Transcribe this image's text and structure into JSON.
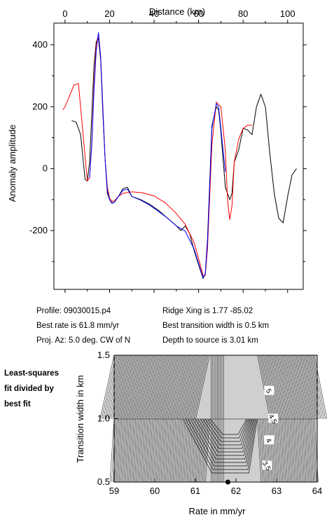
{
  "chart_data": [
    {
      "type": "line",
      "title": "Distance (km)",
      "xlabel": "Distance (km)",
      "ylabel": "Anomaly amplitude",
      "xlim": [
        -5,
        107
      ],
      "ylim": [
        -390,
        470
      ],
      "xticks": [
        "0",
        "20",
        "40",
        "60",
        "80",
        "100"
      ],
      "yticks": [
        "-200",
        "0",
        "200",
        "400"
      ],
      "series": [
        {
          "color": "#000000",
          "x": [
            3,
            5,
            7,
            9,
            10,
            11,
            12,
            13,
            14,
            15,
            16,
            17,
            18,
            19,
            20,
            21,
            22,
            24,
            26,
            28,
            30,
            34,
            38,
            42,
            46,
            50,
            52,
            54,
            56,
            58,
            60,
            62,
            63,
            64,
            66,
            68,
            69,
            70,
            72,
            74,
            75,
            76,
            78,
            80,
            82,
            84,
            86,
            88,
            90,
            92,
            94,
            96,
            98,
            100,
            102,
            104
          ],
          "y": [
            155,
            150,
            110,
            -35,
            -40,
            20,
            170,
            330,
            410,
            420,
            350,
            180,
            30,
            -80,
            -100,
            -110,
            -110,
            -90,
            -65,
            -60,
            -90,
            -100,
            -115,
            -135,
            -160,
            -185,
            -200,
            -185,
            -210,
            -265,
            -310,
            -355,
            -340,
            -230,
            140,
            200,
            190,
            120,
            -60,
            -100,
            -80,
            20,
            60,
            130,
            125,
            110,
            200,
            240,
            200,
            50,
            -80,
            -160,
            -175,
            -90,
            -20,
            0
          ]
        },
        {
          "color": "#ff0000",
          "x": [
            -1,
            0,
            2,
            4,
            6,
            8,
            10,
            11,
            12,
            13,
            14,
            15,
            16,
            17,
            18,
            19,
            20,
            21,
            22,
            24,
            26,
            30,
            35,
            40,
            45,
            50,
            54,
            58,
            60,
            62,
            63,
            64,
            66,
            68,
            70,
            72,
            73,
            74,
            75,
            76,
            78,
            80,
            82,
            84
          ],
          "y": [
            190,
            200,
            235,
            270,
            275,
            120,
            -40,
            -30,
            80,
            270,
            400,
            435,
            360,
            200,
            30,
            -60,
            -95,
            -105,
            -105,
            -90,
            -80,
            -75,
            -78,
            -88,
            -110,
            -145,
            -180,
            -240,
            -290,
            -345,
            -345,
            -260,
            80,
            215,
            200,
            60,
            -100,
            -165,
            -120,
            20,
            95,
            130,
            140,
            140
          ]
        },
        {
          "color": "#0000ff",
          "x": [
            11,
            12,
            13,
            14,
            15,
            16,
            17,
            18,
            19,
            20,
            21,
            22,
            24,
            26,
            28,
            30,
            34,
            38,
            42,
            46,
            50,
            54,
            58,
            60,
            62,
            63,
            64,
            66,
            68,
            69,
            70,
            72
          ],
          "y": [
            -30,
            70,
            250,
            380,
            440,
            360,
            190,
            30,
            -70,
            -100,
            -112,
            -110,
            -90,
            -70,
            -66,
            -90,
            -102,
            -118,
            -138,
            -160,
            -185,
            -202,
            -260,
            -305,
            -352,
            -340,
            -240,
            130,
            210,
            200,
            130,
            -10
          ]
        }
      ]
    },
    {
      "type": "heatmap",
      "xlabel": "Rate in mm/yr",
      "ylabel": "Transition width in km",
      "xlim": [
        59,
        64
      ],
      "ylim": [
        0.5,
        1.5
      ],
      "xticks": [
        "59",
        "60",
        "61",
        "62",
        "63",
        "64"
      ],
      "yticks": [
        "0.5",
        "1.0",
        "1.5"
      ],
      "contour_labels": [
        "5",
        "4.5",
        "4",
        "3.5"
      ],
      "best_fit": {
        "rate": 61.8,
        "width": 0.5
      }
    }
  ],
  "info": {
    "profile": "Profile: 09030015.p4",
    "best_rate": "Best rate is 61.8 mm/yr",
    "proj_az": "Proj. Az: 5.0 deg. CW of N",
    "ridge_xing": "Ridge Xing is 1.77 -85.02",
    "best_transition": "Best transition width is 0.5 km",
    "depth": "Depth to source is   3.01 km"
  },
  "side_label": [
    "Least-squares",
    "fit divided by",
    "best fit"
  ]
}
